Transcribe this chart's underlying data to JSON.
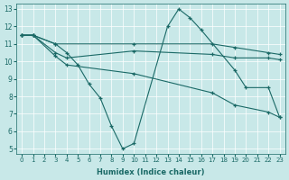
{
  "xlabel": "Humidex (Indice chaleur)",
  "xlim": [
    -0.5,
    23.5
  ],
  "ylim": [
    4.7,
    13.3
  ],
  "yticks": [
    5,
    6,
    7,
    8,
    9,
    10,
    11,
    12,
    13
  ],
  "xticks": [
    0,
    1,
    2,
    3,
    4,
    5,
    6,
    7,
    8,
    9,
    10,
    11,
    12,
    13,
    14,
    15,
    16,
    17,
    18,
    19,
    20,
    21,
    22,
    23
  ],
  "bg_color": "#c8e8e8",
  "line_color": "#1a6966",
  "lines": [
    {
      "x": [
        0,
        1,
        3,
        4,
        5,
        6,
        7,
        8,
        9,
        10,
        13,
        14,
        15,
        16,
        19,
        20,
        22,
        23
      ],
      "y": [
        11.5,
        11.5,
        11.0,
        10.5,
        9.8,
        8.7,
        7.9,
        6.3,
        5.0,
        5.3,
        12.0,
        13.0,
        12.5,
        11.8,
        9.5,
        8.5,
        8.5,
        6.8
      ]
    },
    {
      "x": [
        0,
        1,
        3,
        10,
        17,
        19,
        22,
        23
      ],
      "y": [
        11.5,
        11.5,
        11.0,
        11.0,
        11.0,
        10.8,
        10.5,
        10.4
      ]
    },
    {
      "x": [
        0,
        1,
        3,
        4,
        10,
        17,
        19,
        22,
        23
      ],
      "y": [
        11.5,
        11.5,
        10.5,
        10.2,
        10.6,
        10.4,
        10.2,
        10.2,
        10.1
      ]
    },
    {
      "x": [
        0,
        1,
        3,
        4,
        10,
        17,
        19,
        22,
        23
      ],
      "y": [
        11.5,
        11.5,
        10.3,
        9.8,
        9.3,
        8.2,
        7.5,
        7.1,
        6.8
      ]
    }
  ]
}
